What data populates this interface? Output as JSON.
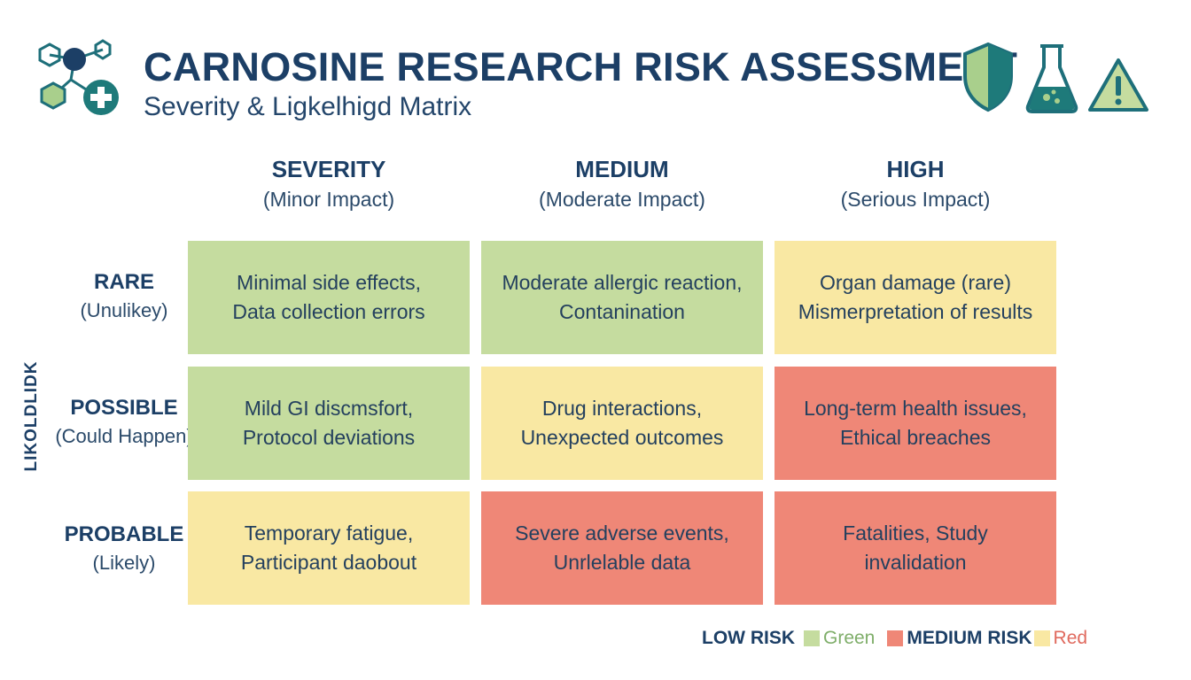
{
  "header": {
    "title": "CARNOSINE RESEARCH RISK ASSESSMENT",
    "subtitle": "Severity & Ligkelhigd Matrix"
  },
  "icons": [
    "molecule-icon",
    "medical-cross-icon",
    "shield-icon",
    "flask-icon",
    "warning-icon"
  ],
  "axis_label": "LIKOLDLIDK",
  "columns": [
    {
      "heading": "SEVERITY",
      "sub": "(Minor Impact)"
    },
    {
      "heading": "MEDIUM",
      "sub": "(Moderate Impact)"
    },
    {
      "heading": "HIGH",
      "sub": "(Serious Impact)"
    }
  ],
  "rows": [
    {
      "heading": "RARE",
      "sub": "(Unulikey)"
    },
    {
      "heading": "POSSIBLE",
      "sub": "(Could Happen)"
    },
    {
      "heading": "PROBABLE",
      "sub": "(Likely)"
    }
  ],
  "cells": [
    [
      {
        "line1": "Minimal side effects,",
        "line2": "Data collection errors",
        "level": "green"
      },
      {
        "line1": "Moderate allergic reaction,",
        "line2": "Contanination",
        "level": "green"
      },
      {
        "line1": "Organ damage (rare)",
        "line2": "Mismerpretation of results",
        "level": "yellow"
      }
    ],
    [
      {
        "line1": "Mild GI discmsfort,",
        "line2": "Protocol deviations",
        "level": "green"
      },
      {
        "line1": "Drug interactions,",
        "line2": "Unexpected outcomes",
        "level": "yellow"
      },
      {
        "line1": "Long-term health issues,",
        "line2": "Ethical breaches",
        "level": "red"
      }
    ],
    [
      {
        "line1": "Temporary fatigue,",
        "line2": "Participant daobout",
        "level": "yellow"
      },
      {
        "line1": "Severe adverse events,",
        "line2": "Unrlelable data",
        "level": "red"
      },
      {
        "line1": "Fatalities, Study",
        "line2": "invalidation",
        "level": "red"
      }
    ]
  ],
  "legend": {
    "low_label": "LOW RISK",
    "low_text": "Green",
    "medium_label": "MEDIUM RISK",
    "high_text": "Red"
  },
  "colors": {
    "green": "#c5dc9f",
    "yellow": "#f9e8a3",
    "red": "#ef8777",
    "title": "#1c3f66",
    "teal": "#1e7a7a"
  }
}
